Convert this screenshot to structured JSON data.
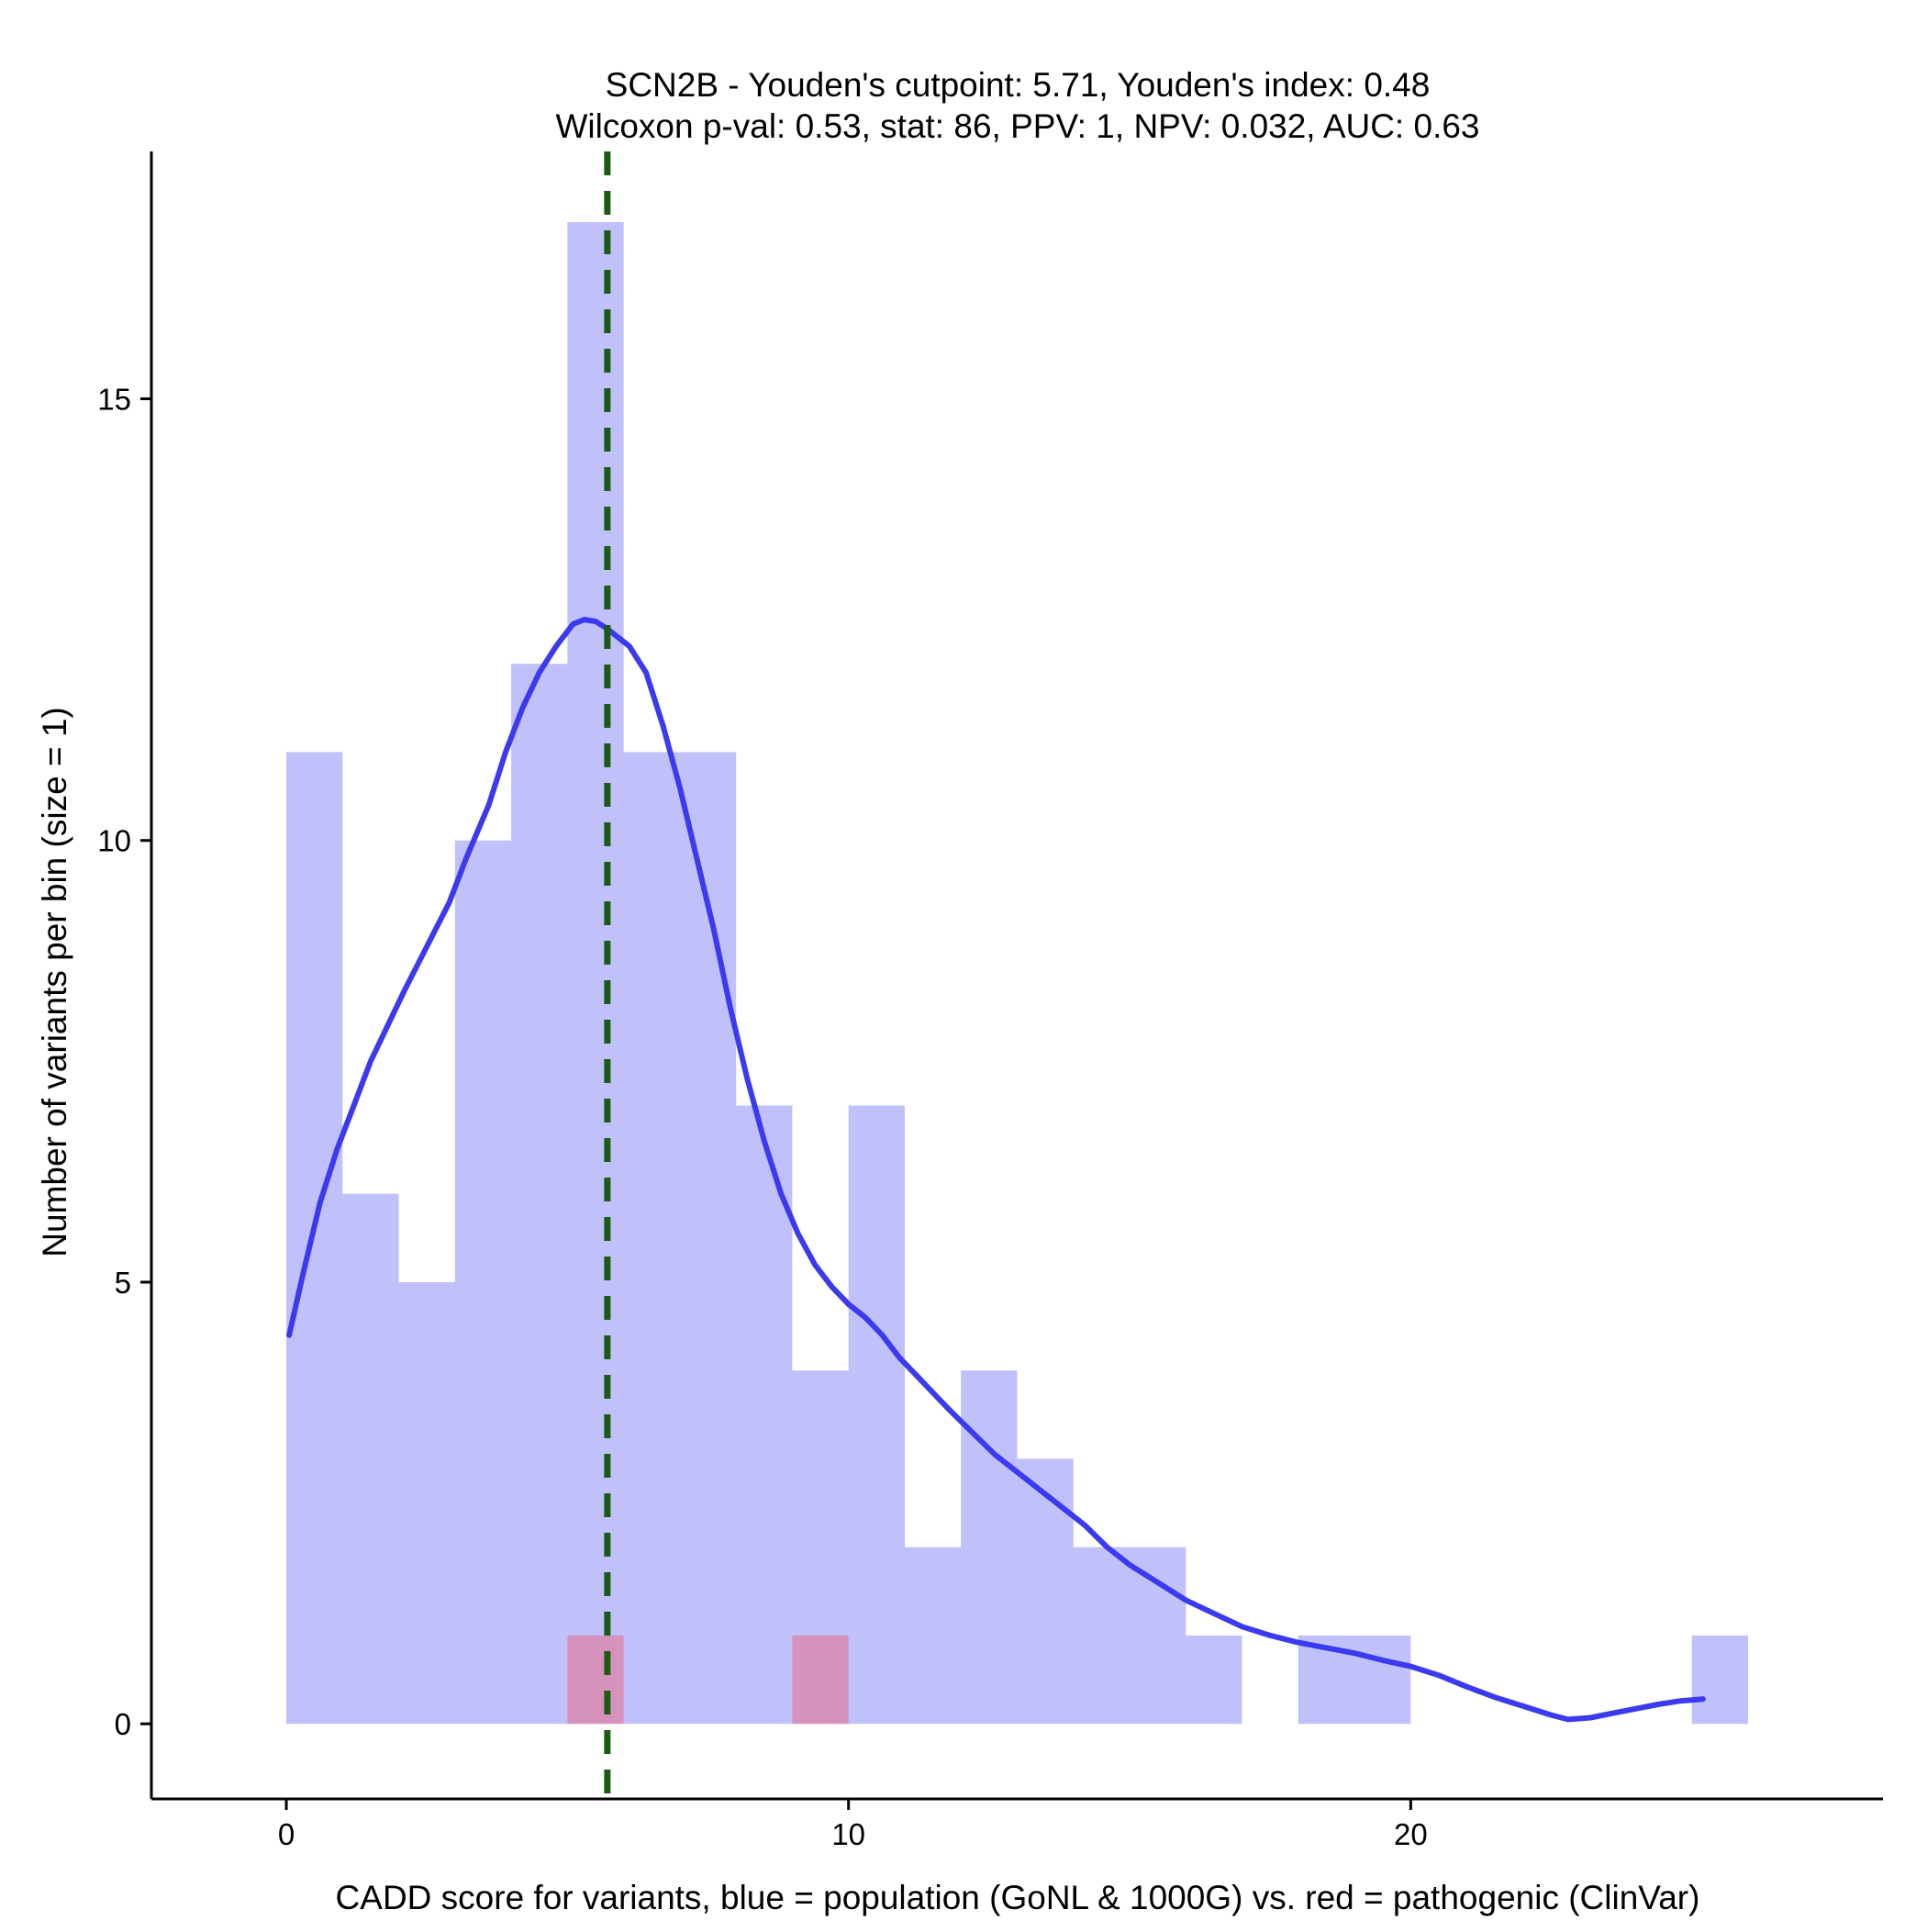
{
  "chart_data": {
    "type": "bar",
    "title_line1": "SCN2B - Youden's cutpoint: 5.71, Youden's index: 0.48",
    "title_line2": "Wilcoxon p-val: 0.53, stat: 86, PPV: 1, NPV: 0.032, AUC: 0.63",
    "xlabel": "CADD score for variants, blue = population (GoNL & 1000G) vs. red = pathogenic (ClinVar)",
    "ylabel": "Number of variants per bin (size = 1)",
    "xlim": [
      -2.4,
      28.4
    ],
    "ylim": [
      -0.85,
      17.8
    ],
    "x_ticks": [
      0,
      10,
      20
    ],
    "x_tick_labels": [
      "0",
      "10",
      "20"
    ],
    "y_ticks": [
      0,
      5,
      10,
      15
    ],
    "y_tick_labels": [
      "0",
      "5",
      "10",
      "15"
    ],
    "bin_width": 1,
    "population": {
      "name": "population (GoNL & 1000G)",
      "color": "#8c8cf7",
      "opacity": 0.55,
      "bin_starts": [
        0,
        1,
        2,
        3,
        4,
        5,
        6,
        7,
        8,
        9,
        10,
        11,
        12,
        13,
        14,
        15,
        16,
        17,
        18,
        19,
        20,
        21,
        22,
        23,
        24,
        25
      ],
      "counts": [
        11,
        6,
        5,
        10,
        12,
        17,
        11,
        11,
        7,
        4,
        7,
        2,
        4,
        3,
        2,
        2,
        1,
        0,
        1,
        1,
        0,
        0,
        0,
        0,
        0,
        1
      ]
    },
    "pathogenic": {
      "name": "pathogenic (ClinVar)",
      "color": "#d98aae",
      "bin_starts": [
        5,
        9
      ],
      "counts": [
        1,
        1
      ]
    },
    "density_curve": {
      "color": "#3a3af0",
      "x": [
        0.05,
        0.3,
        0.6,
        0.9,
        1.2,
        1.5,
        1.8,
        2.1,
        2.5,
        2.9,
        3.2,
        3.6,
        3.9,
        4.2,
        4.5,
        4.8,
        5.1,
        5.3,
        5.5,
        5.7,
        5.9,
        6.1,
        6.4,
        6.7,
        7.0,
        7.3,
        7.6,
        7.9,
        8.2,
        8.5,
        8.8,
        9.1,
        9.4,
        9.7,
        10.0,
        10.3,
        10.6,
        10.9,
        11.2,
        11.5,
        11.8,
        12.2,
        12.6,
        13.0,
        13.4,
        13.8,
        14.2,
        14.6,
        15.0,
        15.5,
        16.0,
        16.5,
        17.0,
        17.5,
        18.0,
        18.5,
        19.0,
        19.5,
        20.0,
        20.5,
        21.0,
        21.5,
        22.0,
        22.5,
        22.8,
        23.2,
        23.6,
        24.0,
        24.4,
        24.8,
        25.2
      ],
      "y": [
        4.4,
        5.1,
        5.9,
        6.5,
        7.0,
        7.5,
        7.9,
        8.3,
        8.8,
        9.3,
        9.8,
        10.4,
        11.0,
        11.5,
        11.9,
        12.2,
        12.45,
        12.5,
        12.48,
        12.4,
        12.3,
        12.2,
        11.9,
        11.3,
        10.6,
        9.8,
        9.0,
        8.1,
        7.3,
        6.6,
        6.0,
        5.55,
        5.2,
        4.95,
        4.75,
        4.6,
        4.4,
        4.15,
        3.95,
        3.75,
        3.55,
        3.3,
        3.05,
        2.85,
        2.65,
        2.45,
        2.25,
        2.0,
        1.8,
        1.6,
        1.4,
        1.25,
        1.1,
        1.0,
        0.92,
        0.86,
        0.8,
        0.72,
        0.65,
        0.55,
        0.42,
        0.3,
        0.2,
        0.1,
        0.05,
        0.07,
        0.12,
        0.17,
        0.22,
        0.26,
        0.28
      ]
    },
    "cutpoint": {
      "value": 5.71,
      "color": "#1a5c12",
      "style": "dashed"
    },
    "grid": false,
    "legend": "none"
  }
}
